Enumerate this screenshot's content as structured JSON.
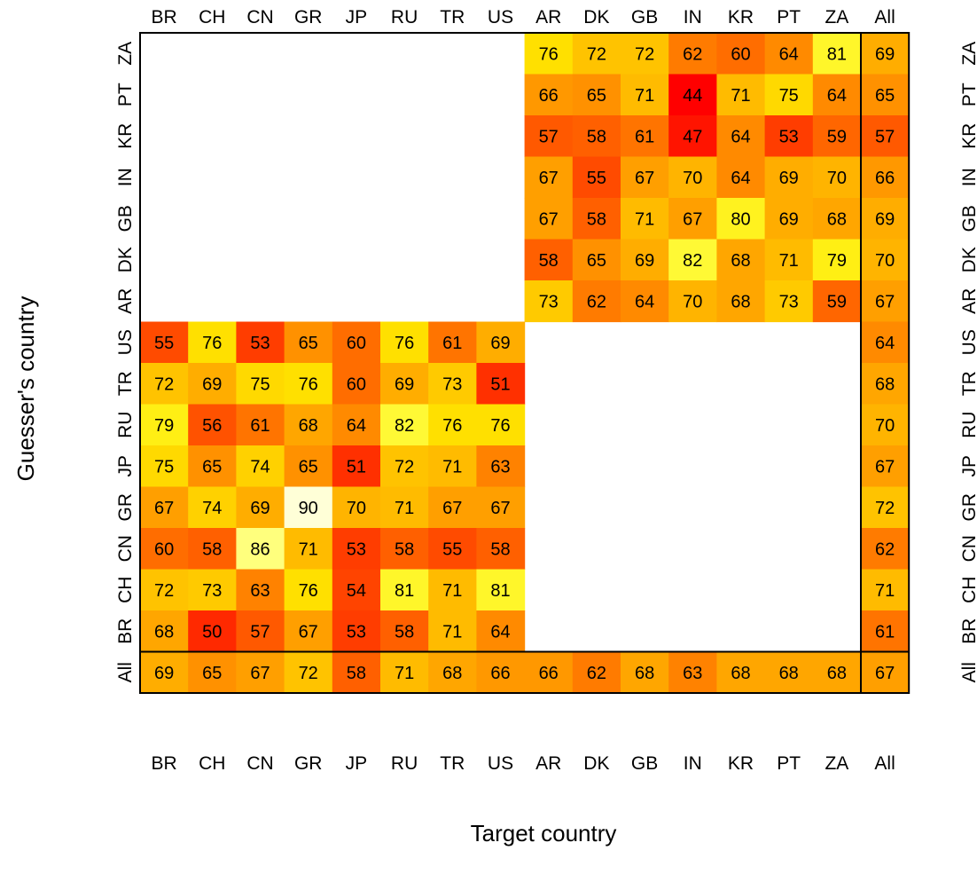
{
  "chart_data": {
    "type": "heatmap",
    "title": "",
    "xlabel": "Target country",
    "ylabel": "Guesser's country",
    "x_categories": [
      "BR",
      "CH",
      "CN",
      "GR",
      "JP",
      "RU",
      "TR",
      "US",
      "AR",
      "DK",
      "GB",
      "IN",
      "KR",
      "PT",
      "ZA",
      "All"
    ],
    "y_categories": [
      "ZA",
      "PT",
      "KR",
      "IN",
      "GB",
      "DK",
      "AR",
      "US",
      "TR",
      "RU",
      "JP",
      "GR",
      "CN",
      "CH",
      "BR",
      "All"
    ],
    "values": [
      [
        null,
        null,
        null,
        null,
        null,
        null,
        null,
        null,
        76,
        72,
        72,
        62,
        60,
        64,
        81,
        69
      ],
      [
        null,
        null,
        null,
        null,
        null,
        null,
        null,
        null,
        66,
        65,
        71,
        44,
        71,
        75,
        64,
        65
      ],
      [
        null,
        null,
        null,
        null,
        null,
        null,
        null,
        null,
        57,
        58,
        61,
        47,
        64,
        53,
        59,
        57
      ],
      [
        null,
        null,
        null,
        null,
        null,
        null,
        null,
        null,
        67,
        55,
        67,
        70,
        64,
        69,
        70,
        66
      ],
      [
        null,
        null,
        null,
        null,
        null,
        null,
        null,
        null,
        67,
        58,
        71,
        67,
        80,
        69,
        68,
        69
      ],
      [
        null,
        null,
        null,
        null,
        null,
        null,
        null,
        null,
        58,
        65,
        69,
        82,
        68,
        71,
        79,
        70
      ],
      [
        null,
        null,
        null,
        null,
        null,
        null,
        null,
        null,
        73,
        62,
        64,
        70,
        68,
        73,
        59,
        67
      ],
      [
        55,
        76,
        53,
        65,
        60,
        76,
        61,
        69,
        null,
        null,
        null,
        null,
        null,
        null,
        null,
        64
      ],
      [
        72,
        69,
        75,
        76,
        60,
        69,
        73,
        51,
        null,
        null,
        null,
        null,
        null,
        null,
        null,
        68
      ],
      [
        79,
        56,
        61,
        68,
        64,
        82,
        76,
        76,
        null,
        null,
        null,
        null,
        null,
        null,
        null,
        70
      ],
      [
        75,
        65,
        74,
        65,
        51,
        72,
        71,
        63,
        null,
        null,
        null,
        null,
        null,
        null,
        null,
        67
      ],
      [
        67,
        74,
        69,
        90,
        70,
        71,
        67,
        67,
        null,
        null,
        null,
        null,
        null,
        null,
        null,
        72
      ],
      [
        60,
        58,
        86,
        71,
        53,
        58,
        55,
        58,
        null,
        null,
        null,
        null,
        null,
        null,
        null,
        62
      ],
      [
        72,
        73,
        63,
        76,
        54,
        81,
        71,
        81,
        null,
        null,
        null,
        null,
        null,
        null,
        null,
        71
      ],
      [
        68,
        50,
        57,
        67,
        53,
        58,
        71,
        64,
        null,
        null,
        null,
        null,
        null,
        null,
        null,
        61
      ],
      [
        69,
        65,
        67,
        72,
        58,
        71,
        68,
        66,
        66,
        62,
        68,
        63,
        68,
        68,
        68,
        67
      ]
    ],
    "colormap": "heat (red = low, yellow = mid, pale = high)",
    "color_range": [
      44,
      90
    ]
  }
}
